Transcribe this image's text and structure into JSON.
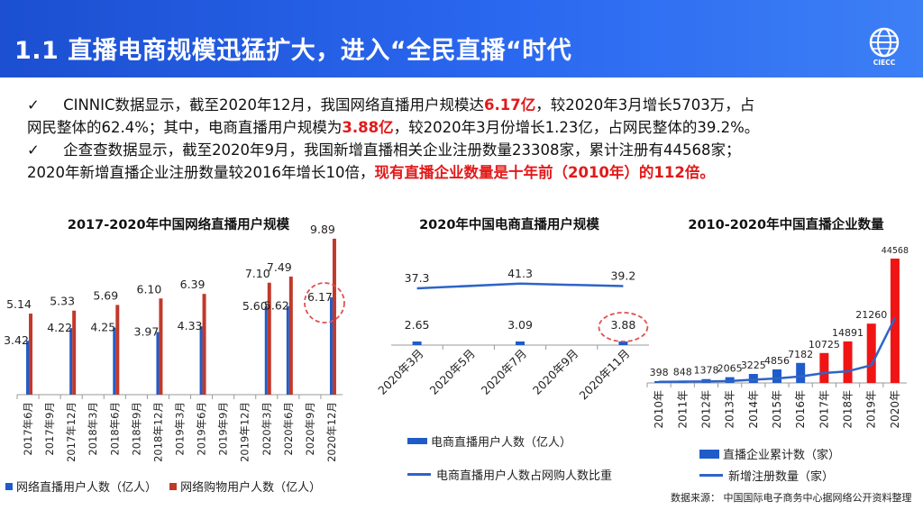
{
  "header": {
    "title": "1.1 直播电商规模迅猛扩大，进入“全民直播“时代",
    "logo_text": "CIECC"
  },
  "bullets": [
    {
      "check": "✓",
      "line1_a": "CINNIC数据显示，截至2020年12月，我国网络直播用户规模达",
      "line1_em": "6.17亿",
      "line1_b": "，较2020年3月增长5703万，占",
      "line2_a": "网民整体的62.4%；其中，电商直播用户规模为",
      "line2_em": "3.88亿",
      "line2_b": "，较2020年3月份增长1.23亿，占网民整体的39.2%。"
    },
    {
      "check": "✓",
      "line1": "企查查数据显示，截至2020年9月，我国新增直播相关企业注册数量23308家，累计注册有44568家；",
      "line2_a": "2020年新增直播企业注册数量较2016年增长10倍，",
      "line2_em": "现有直播企业数量是十年前（2010年）的112倍。"
    }
  ],
  "colors": {
    "header": "#2a68f0",
    "blue_bar": "#1f5cc9",
    "red_bar": "#c0392b",
    "bright_red": "#f01414",
    "line": "#2f64c8",
    "highlight_circle": "#e05050"
  },
  "chart_data": [
    {
      "type": "bar",
      "title": "2017-2020年中国网络直播用户规模",
      "categories": [
        "2017年6月",
        "2017年9月",
        "2017年12月",
        "2018年3月",
        "2018年6月",
        "2018年9月",
        "2018年12月",
        "2019年3月",
        "2019年6月",
        "2019年9月",
        "2019年12月",
        "2020年3月",
        "2020年6月",
        "2020年9月",
        "2020年12月"
      ],
      "series": [
        {
          "name": "网络直播用户人数（亿人）",
          "values": [
            3.42,
            null,
            4.22,
            null,
            4.25,
            null,
            3.97,
            null,
            4.33,
            null,
            null,
            5.6,
            5.62,
            null,
            6.17
          ]
        },
        {
          "name": "网络购物用户人数（亿人）",
          "values": [
            5.14,
            null,
            5.33,
            null,
            5.69,
            null,
            6.1,
            null,
            6.39,
            null,
            null,
            7.1,
            7.49,
            null,
            9.89
          ]
        }
      ],
      "value_labels": {
        "series0": [
          "3.42",
          "",
          "4.22",
          "",
          "4.25",
          "",
          "3.97",
          "",
          "4.33",
          "",
          "",
          "5.60",
          "5.62",
          "",
          "6.17"
        ],
        "series1": [
          "5.14",
          "",
          "5.33",
          "",
          "5.69",
          "",
          "6.10",
          "",
          "6.39",
          "",
          "",
          "7.10",
          "7.49",
          "",
          "9.89"
        ]
      },
      "highlight": "6.17",
      "ylim": [
        0,
        10
      ],
      "legend": "bottom"
    },
    {
      "type": "bar",
      "title": "2020年中国电商直播用户规模",
      "categories": [
        "2020年3月",
        "2020年5月",
        "2020年7月",
        "2020年9月",
        "2020年11月"
      ],
      "series": [
        {
          "name": "电商直播用户人数（亿人）",
          "type": "bar",
          "values": [
            2.65,
            null,
            3.09,
            null,
            3.88
          ]
        },
        {
          "name": "电商直播用户人数占网购人数比重",
          "type": "line",
          "values": [
            37.3,
            null,
            41.3,
            null,
            39.2
          ]
        }
      ],
      "highlight": "3.88",
      "legend": "bottom"
    },
    {
      "type": "bar",
      "title": "2010-2020年中国直播企业数量",
      "categories": [
        "2010年",
        "2011年",
        "2012年",
        "2013年",
        "2014年",
        "2015年",
        "2016年",
        "2017年",
        "2018年",
        "2019年",
        "2020年"
      ],
      "series": [
        {
          "name": "直播企业累计数（家）",
          "type": "bar",
          "values": [
            398,
            848,
            1378,
            2065,
            3225,
            4856,
            7182,
            10725,
            14891,
            21260,
            44568
          ]
        },
        {
          "name": "新增注册数量（家）",
          "type": "line",
          "values": [
            398,
            450,
            530,
            687,
            1160,
            1631,
            2326,
            3543,
            4166,
            6369,
            23308
          ]
        }
      ],
      "red_from_index": 7,
      "legend": "bottom"
    }
  ],
  "source": "数据来源：  中国国际电子商务中心据网络公开资料整理"
}
